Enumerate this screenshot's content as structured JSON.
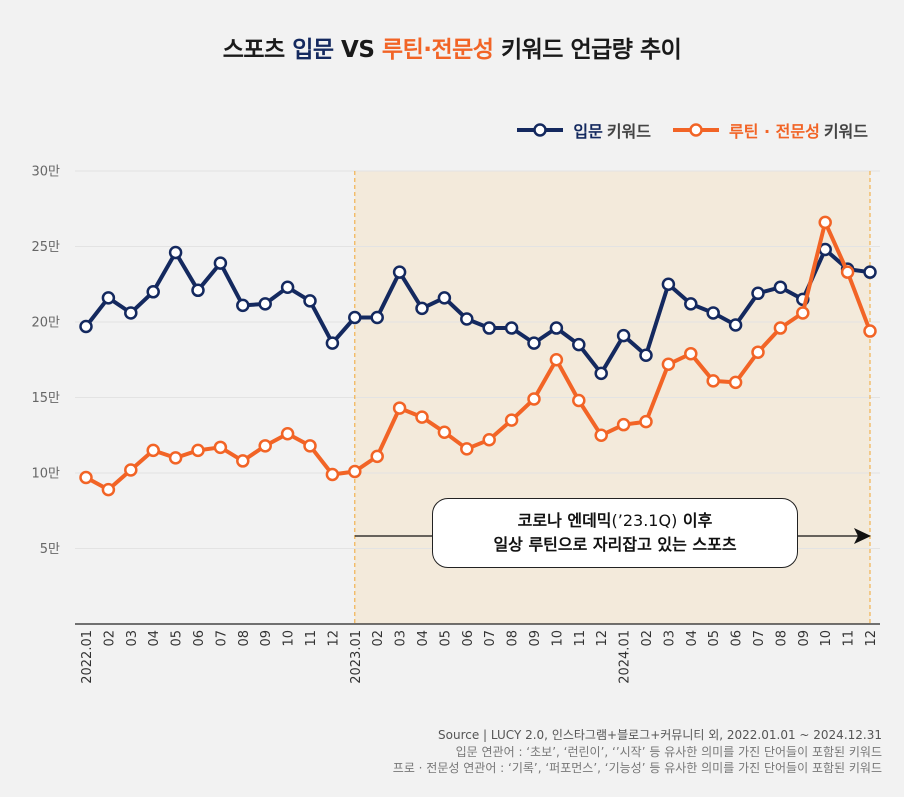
{
  "title": {
    "part1": "스포츠 ",
    "part2": "입문",
    "part3": " VS ",
    "part4": "루틴·전문성",
    "part5": " 키워드 언급량 추이"
  },
  "legend": [
    {
      "strong": "입문",
      "rest": "키워드",
      "color": "#14295f"
    },
    {
      "strong": "루틴 · 전문성",
      "rest": "키워드",
      "color": "#f26426"
    }
  ],
  "callout": {
    "line1_bold_a": "코로나 엔데믹",
    "line1_regular": "(’23.1Q)",
    "line1_bold_b": " 이후",
    "line2": "일상 루틴으로 자리잡고 있는 스포츠"
  },
  "source": {
    "line1": "Source |  LUCY 2.0, 인스타그램+블로그+커뮤니티 외, 2022.01.01 ~ 2024.12.31",
    "line2": "입문 연관어 : ‘초보’, ‘런린이’, ‘’시작’ 등 유사한 의미를 가진 단어들이 포함된 키워드",
    "line3": "프로 · 전문성 연관어 : ‘기록’, ‘퍼포먼스’, ‘기능성’ 등 유사한 의미를 가진 단어들이 포함된 키워드"
  },
  "colors": {
    "navy": "#14295f",
    "orange": "#f26426",
    "shade": "#f3eadb",
    "divider": "#f2a531",
    "background": "#f2f2f2"
  },
  "chart_data": {
    "type": "line",
    "categories": [
      "2022.01",
      "02",
      "03",
      "04",
      "05",
      "06",
      "07",
      "08",
      "09",
      "10",
      "11",
      "12",
      "2023.01",
      "02",
      "03",
      "04",
      "05",
      "06",
      "07",
      "08",
      "09",
      "10",
      "11",
      "12",
      "2024.01",
      "02",
      "03",
      "04",
      "05",
      "06",
      "07",
      "08",
      "09",
      "10",
      "11",
      "12"
    ],
    "y_tick_labels": [
      "5만",
      "10만",
      "15만",
      "20만",
      "25만",
      "30만"
    ],
    "y_tick_values": [
      5,
      10,
      15,
      20,
      25,
      30
    ],
    "ylim": [
      0,
      30
    ],
    "y_unit": "만",
    "grid": true,
    "shaded_region": {
      "from": "2023.01",
      "to": "2024.12"
    },
    "series": [
      {
        "name": "입문 키워드",
        "color": "#14295f",
        "values": [
          19.7,
          21.6,
          20.6,
          22.0,
          24.6,
          22.1,
          23.9,
          21.1,
          21.2,
          22.3,
          21.4,
          18.6,
          20.3,
          20.3,
          23.3,
          20.9,
          21.6,
          20.2,
          19.6,
          19.6,
          18.6,
          19.6,
          18.5,
          16.6,
          19.1,
          17.8,
          22.5,
          21.2,
          20.6,
          19.8,
          21.9,
          22.3,
          21.5,
          24.8,
          23.5,
          23.3
        ]
      },
      {
        "name": "루틴 · 전문성 키워드",
        "color": "#f26426",
        "values": [
          9.7,
          8.9,
          10.2,
          11.5,
          11.0,
          11.5,
          11.7,
          10.8,
          11.8,
          12.6,
          11.8,
          9.9,
          10.1,
          11.1,
          14.3,
          13.7,
          12.7,
          11.6,
          12.2,
          13.5,
          14.9,
          17.5,
          14.8,
          12.5,
          13.2,
          13.4,
          17.2,
          17.9,
          16.1,
          16.0,
          18.0,
          19.6,
          20.6,
          26.6,
          23.3,
          19.4
        ]
      }
    ]
  }
}
